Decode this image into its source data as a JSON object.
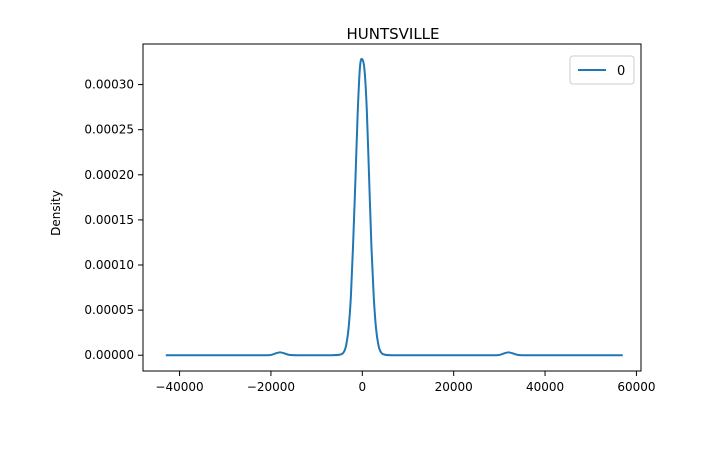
{
  "chart_data": {
    "type": "line",
    "title": "HUNTSVILLE",
    "xlabel": "",
    "ylabel": "Density",
    "xlim": [
      -48000,
      61000
    ],
    "ylim": [
      -1.75e-05,
      0.000345
    ],
    "x_ticks": [
      -40000,
      -20000,
      0,
      20000,
      40000,
      60000
    ],
    "x_tick_labels": [
      "−40000",
      "−20000",
      "0",
      "20000",
      "40000",
      "60000"
    ],
    "y_ticks": [
      0,
      5e-05,
      0.0001,
      0.00015,
      0.0002,
      0.00025,
      0.0003
    ],
    "y_tick_labels": [
      "0.00000",
      "0.00005",
      "0.00010",
      "0.00015",
      "0.00020",
      "0.00025",
      "0.00030"
    ],
    "grid": false,
    "legend": "top-right",
    "colors": {
      "series": "#1f77b4",
      "axes": "#000000"
    },
    "series": [
      {
        "name": "0",
        "x": [
          -43000,
          -30000,
          -22000,
          -20000,
          -19000,
          -18000,
          -17000,
          -16000,
          -14000,
          -8000,
          -5000,
          -4000,
          -3500,
          -3000,
          -2500,
          -2000,
          -1500,
          -1000,
          -500,
          0,
          500,
          1000,
          1500,
          2000,
          2500,
          3000,
          3500,
          4000,
          5000,
          8000,
          20000,
          28000,
          30000,
          31000,
          32000,
          33000,
          34000,
          36000,
          45000,
          57000
        ],
        "y": [
          0.0,
          0.0,
          0.0,
          3e-07,
          2e-06,
          3.2e-06,
          2e-06,
          4e-07,
          0.0,
          0.0,
          5e-07,
          4e-06,
          1.2e-05,
          3e-05,
          6.5e-05,
          0.000125,
          0.000195,
          0.00027,
          0.00032,
          0.000328,
          0.000315,
          0.00027,
          0.000195,
          0.00012,
          6.5e-05,
          3e-05,
          1.2e-05,
          4e-06,
          5e-07,
          0.0,
          0.0,
          0.0,
          3e-07,
          2e-06,
          3.2e-06,
          2e-06,
          4e-07,
          0.0,
          0.0,
          0.0
        ]
      }
    ]
  }
}
